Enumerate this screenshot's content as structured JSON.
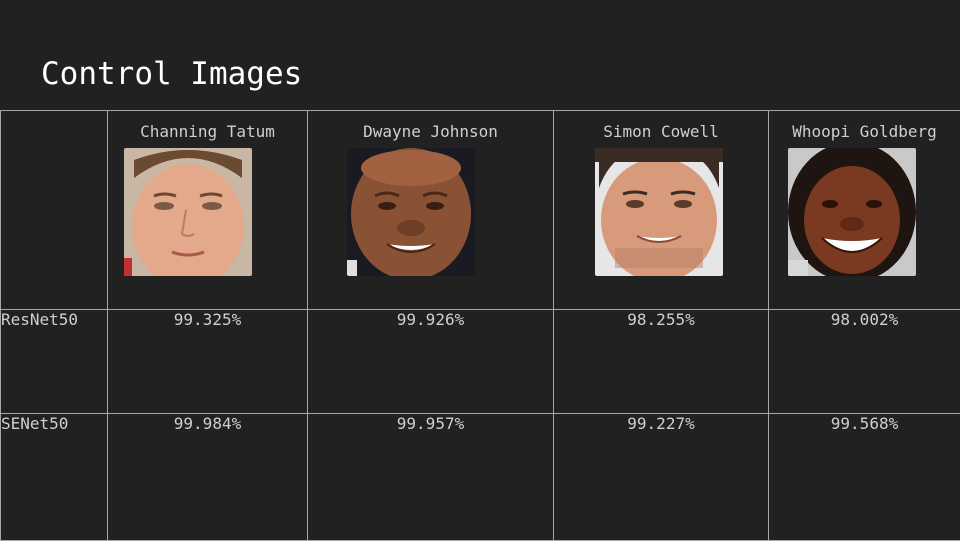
{
  "title": "Control Images",
  "columns": [
    {
      "name": "Channing Tatum",
      "image": "face-photo",
      "skin": "#e3a98a",
      "hair": "#6b4a32",
      "bg": "#c9b7a5"
    },
    {
      "name": "Dwayne Johnson",
      "image": "face-photo",
      "skin": "#8a5234",
      "hair": "#5a3220",
      "bg": "#1a1a22"
    },
    {
      "name": "Simon Cowell",
      "image": "face-photo",
      "skin": "#d79a7a",
      "hair": "#3a2c24",
      "bg": "#e6e6e6"
    },
    {
      "name": "Whoopi Goldberg",
      "image": "face-photo",
      "skin": "#7a3a22",
      "hair": "#1e1410",
      "bg": "#c9c9c9"
    }
  ],
  "rows": [
    {
      "label": "ResNet50",
      "values": [
        "99.325%",
        "99.926%",
        "98.255%",
        "98.002%"
      ]
    },
    {
      "label": "SENet50",
      "values": [
        "99.984%",
        "99.957%",
        "99.227%",
        "99.568%"
      ]
    }
  ]
}
